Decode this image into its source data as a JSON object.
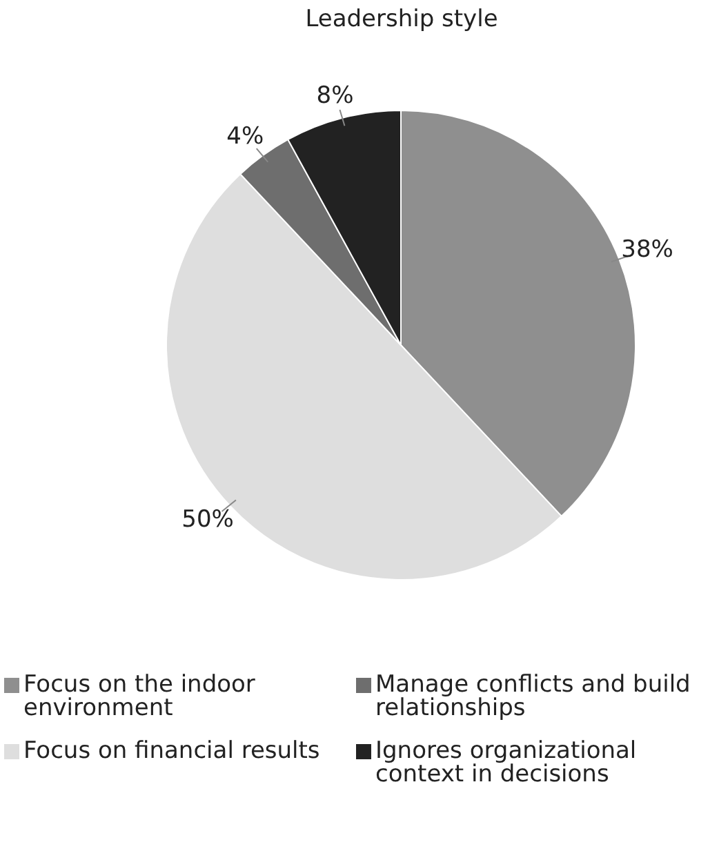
{
  "chart_data": {
    "type": "pie",
    "title": "Leadership style",
    "categories": [
      "Focus on the indoor environment",
      "Focus on financial results",
      "Manage conflicts and build relationships",
      "Ignores organizational context in decisions"
    ],
    "values": [
      38,
      50,
      4,
      8
    ],
    "value_labels": [
      "38%",
      "50%",
      "4%",
      "8%"
    ],
    "colors": [
      "#8f8f8f",
      "#dedede",
      "#6e6e6e",
      "#222222"
    ],
    "legend": "bottom"
  }
}
